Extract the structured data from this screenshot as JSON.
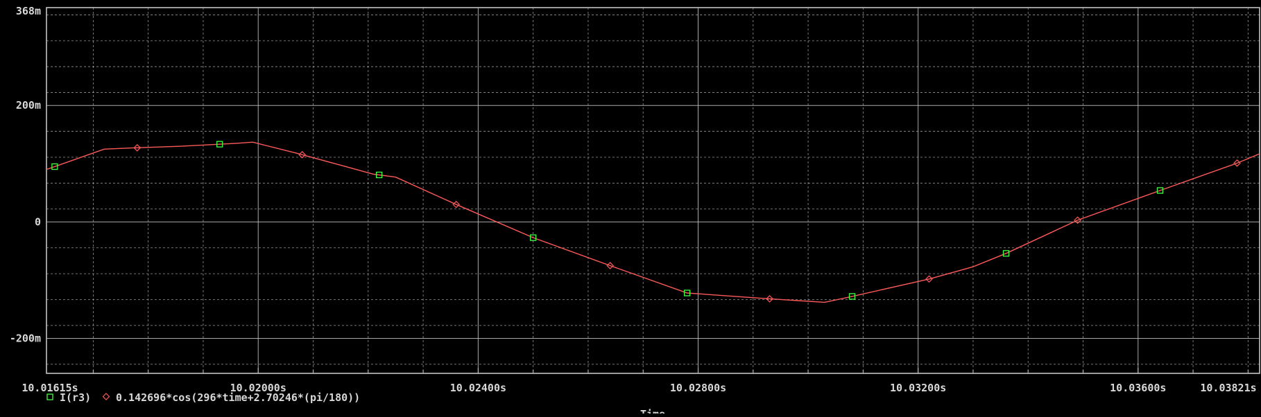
{
  "chart_data": {
    "type": "line",
    "title": "",
    "xlabel": "Time",
    "ylabel": "",
    "xlim": [
      10.01615,
      10.03821
    ],
    "ylim": [
      -0.26,
      0.368
    ],
    "grid": true,
    "background_color": "#000000",
    "grid_color": "#c8c8c8",
    "x_ticks": [
      {
        "value": 10.01615,
        "label": "10.01615s"
      },
      {
        "value": 10.02,
        "label": "10.02000s"
      },
      {
        "value": 10.024,
        "label": "10.02400s"
      },
      {
        "value": 10.028,
        "label": "10.02800s"
      },
      {
        "value": 10.032,
        "label": "10.03200s"
      },
      {
        "value": 10.036,
        "label": "10.03600s"
      },
      {
        "value": 10.03821,
        "label": "10.03821s"
      }
    ],
    "y_ticks": [
      {
        "value": 0.368,
        "label": "368m"
      },
      {
        "value": 0.2,
        "label": "200m"
      },
      {
        "value": 0,
        "label": "0"
      },
      {
        "value": -0.2,
        "label": "-200m"
      }
    ],
    "series": [
      {
        "name": "I(r3)",
        "color": "#ff5a5a",
        "marker": "square",
        "marker_color": "#44ff44",
        "x": [
          10.01615,
          10.0172,
          10.0177,
          10.0186,
          10.0196,
          10.0199,
          10.0207,
          10.0221,
          10.0225,
          10.0236,
          10.025,
          10.0264,
          10.0278,
          10.0293,
          10.0303,
          10.0307,
          10.0322,
          10.033,
          10.0336,
          10.0349,
          10.0364,
          10.0378,
          10.03821
        ],
        "y": [
          0.09,
          0.125,
          0.127,
          0.13,
          0.135,
          0.137,
          0.118,
          0.082,
          0.077,
          0.03,
          -0.027,
          -0.075,
          -0.122,
          -0.132,
          -0.138,
          -0.13,
          -0.098,
          -0.077,
          -0.054,
          0.003,
          0.054,
          0.101,
          0.117
        ],
        "marker_x": [
          10.0163,
          10.0193,
          10.0222,
          10.025,
          10.0278,
          10.0308,
          10.0336,
          10.0364
        ]
      },
      {
        "name": "0.142696*cos(296*time+2.70246*(pi/180))",
        "color": "#ff5a5a",
        "marker": "diamond",
        "marker_color": "#ff5a5a",
        "x": [],
        "y": [],
        "marker_x": [
          10.0178,
          10.0208,
          10.0236,
          10.0264,
          10.0293,
          10.0322,
          10.0349,
          10.0378
        ]
      }
    ],
    "legend_position": "bottom-left"
  }
}
